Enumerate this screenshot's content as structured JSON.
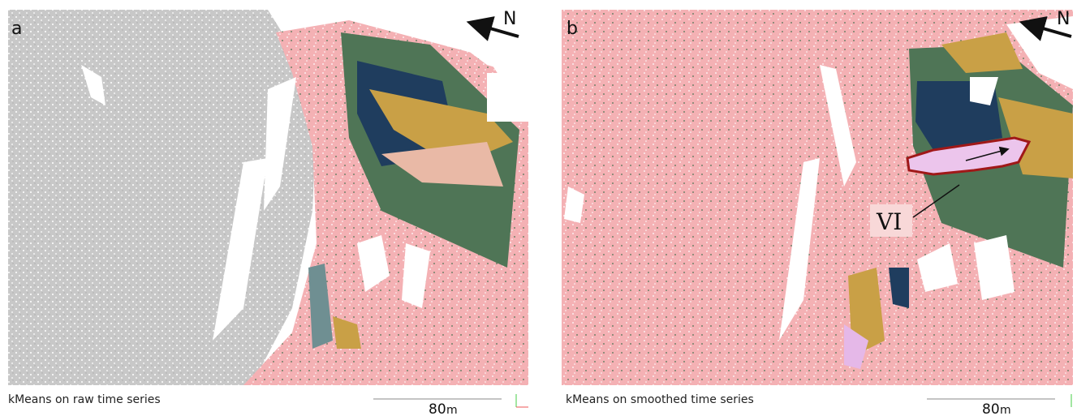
{
  "panels": [
    {
      "label": "a",
      "north": "N",
      "caption": "kMeans on raw time series",
      "scale": {
        "value": 80,
        "unit": "m"
      }
    },
    {
      "label": "b",
      "north": "N",
      "caption": "kMeans on smoothed time series",
      "scale": {
        "value": 80,
        "unit": "m"
      },
      "annotation": "VI"
    }
  ]
}
